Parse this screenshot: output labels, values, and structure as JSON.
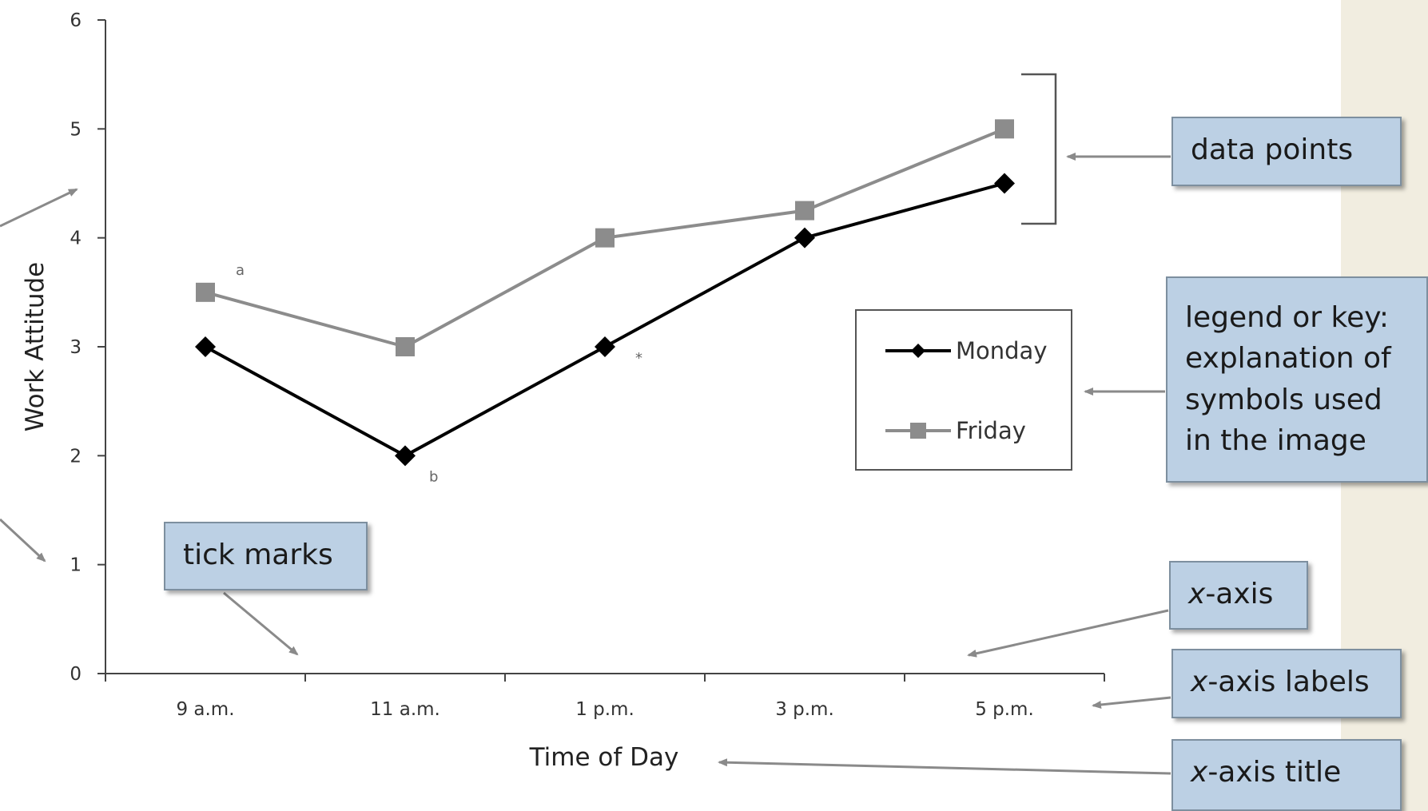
{
  "chart_data": {
    "type": "line",
    "categories": [
      "9 a.m.",
      "11 a.m.",
      "1 p.m.",
      "3 p.m.",
      "5 p.m."
    ],
    "series": [
      {
        "name": "Monday",
        "values": [
          3,
          2,
          3,
          4,
          4.5
        ],
        "color": "#000000",
        "marker": "diamond"
      },
      {
        "name": "Friday",
        "values": [
          3.5,
          3,
          4,
          4.25,
          5
        ],
        "color": "#8c8c8c",
        "marker": "square"
      }
    ],
    "xlabel": "Time of Day",
    "ylabel": "Work Attitude",
    "ylim": [
      0,
      6
    ],
    "yticks": [
      "0",
      "1",
      "2",
      "3",
      "4",
      "5",
      "6"
    ],
    "grid": false,
    "legend": "center-right",
    "point_notes": [
      {
        "text": "a",
        "series": "Friday",
        "category": "9 a.m."
      },
      {
        "text": "b",
        "series": "Monday",
        "category": "11 a.m."
      },
      {
        "text": "*",
        "series": "Monday",
        "category": "1 p.m."
      }
    ]
  },
  "callouts": {
    "data_points": "data points",
    "legend": "legend or key:\nexplanation of\nsymbols used\nin the image",
    "tick_marks": "tick marks",
    "x_axis": "x-axis",
    "x_axis_labels": "x-axis labels",
    "x_axis_title": "x-axis title"
  },
  "colors": {
    "callout_fill": "#bcd0e4",
    "arrow": "#8a8a8a",
    "side_strip": "#f1ede0"
  }
}
